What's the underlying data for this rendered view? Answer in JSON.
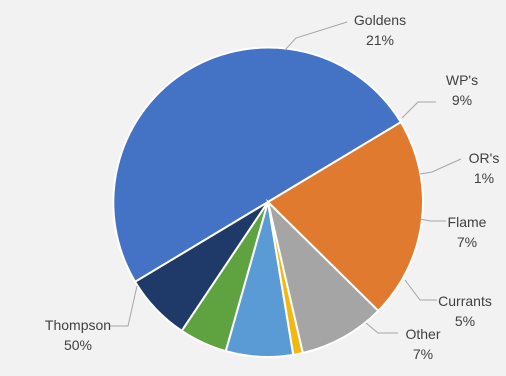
{
  "chart_data": {
    "type": "pie",
    "title": "",
    "start_angle_deg": 31,
    "direction": "counterclockwise",
    "slices": [
      {
        "label": "Thompson",
        "value": 50,
        "pct_text": "50%",
        "color": "#4472c4"
      },
      {
        "label": "Other",
        "value": 7,
        "pct_text": "7%",
        "color": "#1f3a68"
      },
      {
        "label": "Currants",
        "value": 5,
        "pct_text": "5%",
        "color": "#5ea33f"
      },
      {
        "label": "Flame",
        "value": 7,
        "pct_text": "7%",
        "color": "#5b9bd5"
      },
      {
        "label": "OR's",
        "value": 1,
        "pct_text": "1%",
        "color": "#f4b611"
      },
      {
        "label": "WP's",
        "value": 9,
        "pct_text": "9%",
        "color": "#a5a5a5"
      },
      {
        "label": "Goldens",
        "value": 21,
        "pct_text": "21%",
        "color": "#e07a2f"
      }
    ],
    "legend": "none",
    "background": "#f2f2f2"
  }
}
